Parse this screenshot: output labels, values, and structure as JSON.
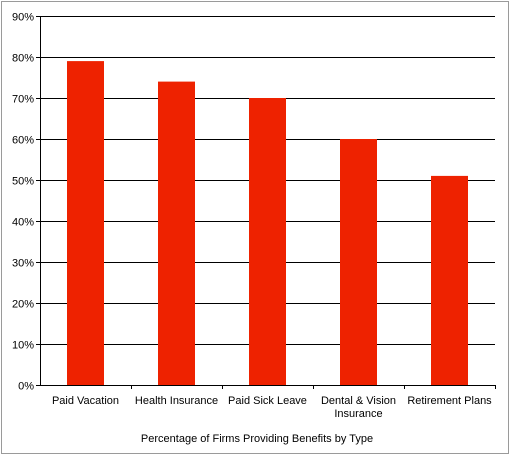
{
  "chart_data": {
    "type": "bar",
    "title": "",
    "xlabel": "Percentage of Firms Providing Benefits by Type",
    "ylabel": "",
    "categories": [
      [
        "Paid Vacation"
      ],
      [
        "Health Insurance"
      ],
      [
        "Paid Sick Leave"
      ],
      [
        "Dental & Vision",
        "Insurance"
      ],
      [
        "Retirement Plans"
      ]
    ],
    "values": [
      79,
      74,
      70,
      60,
      51
    ],
    "ylim": [
      0,
      90
    ],
    "yticks": [
      0,
      10,
      20,
      30,
      40,
      50,
      60,
      70,
      80,
      90
    ],
    "ytick_labels": [
      "0%",
      "10%",
      "20%",
      "30%",
      "40%",
      "50%",
      "60%",
      "70%",
      "80%",
      "90%"
    ],
    "grid": true,
    "legend": "none",
    "colors": {
      "bar": "#ee2200",
      "grid": "#000000",
      "axis": "#000000"
    }
  }
}
